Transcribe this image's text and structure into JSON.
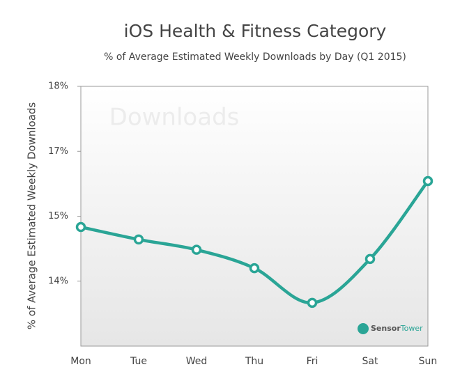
{
  "chart_data": {
    "type": "line",
    "title": "iOS Health & Fitness Category",
    "subtitle": "% of Average Estimated Weekly Downloads by Day (Q1 2015)",
    "y_label": "% of Average Estimated Weekly Downloads",
    "watermark": "Downloads",
    "brand": [
      "Sensor",
      "Tower"
    ],
    "categories": [
      "Mon",
      "Tue",
      "Wed",
      "Thu",
      "Fri",
      "Sat",
      "Sun"
    ],
    "series": [
      {
        "name": "Downloads",
        "color": "#2aa596",
        "values": [
          15.2,
          14.97,
          14.78,
          14.44,
          13.8,
          14.61,
          16.05
        ]
      }
    ],
    "ylim": [
      13.0,
      17.8
    ],
    "yticks": [
      {
        "value": 17.8,
        "label": "18%"
      },
      {
        "value": 16.6,
        "label": "17%"
      },
      {
        "value": 15.4,
        "label": "15%"
      },
      {
        "value": 14.2,
        "label": "14%"
      }
    ]
  }
}
